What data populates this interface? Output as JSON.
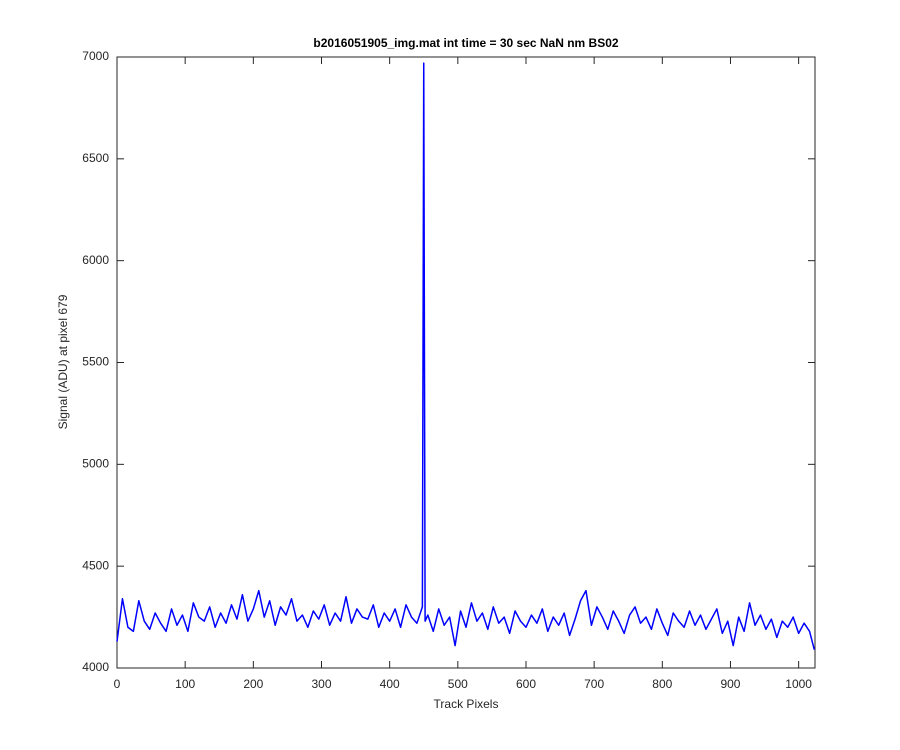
{
  "chart_data": {
    "type": "line",
    "title": "b2016051905_img.mat int time = 30 sec  NaN nm BS02",
    "x_label": "Track Pixels",
    "y_label": "Signal (ADU) at pixel 679",
    "xlim": [
      0,
      1024
    ],
    "ylim": [
      4000,
      7000
    ],
    "xticks": [
      0,
      100,
      200,
      300,
      400,
      500,
      600,
      700,
      800,
      900,
      1000
    ],
    "yticks": [
      4000,
      4500,
      5000,
      5500,
      6000,
      6500,
      7000
    ],
    "grid": false,
    "x": [
      0,
      8,
      16,
      24,
      32,
      40,
      48,
      56,
      64,
      72,
      80,
      88,
      96,
      104,
      112,
      120,
      128,
      136,
      144,
      152,
      160,
      168,
      176,
      184,
      192,
      200,
      208,
      216,
      224,
      232,
      240,
      248,
      256,
      264,
      272,
      280,
      288,
      296,
      304,
      312,
      320,
      328,
      336,
      344,
      352,
      360,
      368,
      376,
      384,
      392,
      400,
      408,
      416,
      424,
      432,
      440,
      448,
      450,
      452,
      456,
      464,
      472,
      480,
      488,
      496,
      504,
      512,
      520,
      528,
      536,
      544,
      552,
      560,
      568,
      576,
      584,
      592,
      600,
      608,
      616,
      624,
      632,
      640,
      648,
      656,
      664,
      672,
      680,
      688,
      696,
      704,
      712,
      720,
      728,
      736,
      744,
      752,
      760,
      768,
      776,
      784,
      792,
      800,
      808,
      816,
      824,
      832,
      840,
      848,
      856,
      864,
      872,
      880,
      888,
      896,
      904,
      912,
      920,
      928,
      936,
      944,
      952,
      960,
      968,
      976,
      984,
      992,
      1000,
      1008,
      1016,
      1023
    ],
    "series": [
      {
        "color": "#0000ff",
        "values": [
          4130,
          4340,
          4200,
          4180,
          4330,
          4230,
          4190,
          4270,
          4220,
          4180,
          4290,
          4210,
          4260,
          4180,
          4320,
          4250,
          4230,
          4300,
          4200,
          4270,
          4220,
          4310,
          4240,
          4360,
          4230,
          4290,
          4380,
          4250,
          4330,
          4210,
          4300,
          4260,
          4340,
          4230,
          4260,
          4200,
          4280,
          4240,
          4310,
          4210,
          4270,
          4230,
          4350,
          4220,
          4290,
          4250,
          4240,
          4310,
          4200,
          4270,
          4230,
          4290,
          4200,
          4310,
          4250,
          4220,
          4300,
          6970,
          4230,
          4260,
          4180,
          4290,
          4210,
          4250,
          4110,
          4280,
          4200,
          4320,
          4230,
          4270,
          4190,
          4300,
          4220,
          4250,
          4170,
          4280,
          4230,
          4200,
          4260,
          4220,
          4290,
          4180,
          4250,
          4210,
          4270,
          4160,
          4240,
          4330,
          4380,
          4210,
          4300,
          4250,
          4190,
          4280,
          4230,
          4170,
          4260,
          4300,
          4220,
          4250,
          4190,
          4290,
          4220,
          4160,
          4270,
          4230,
          4200,
          4280,
          4210,
          4260,
          4190,
          4240,
          4290,
          4170,
          4230,
          4110,
          4250,
          4180,
          4320,
          4210,
          4260,
          4190,
          4240,
          4150,
          4230,
          4200,
          4250,
          4170,
          4220,
          4180,
          4090
        ]
      }
    ]
  }
}
